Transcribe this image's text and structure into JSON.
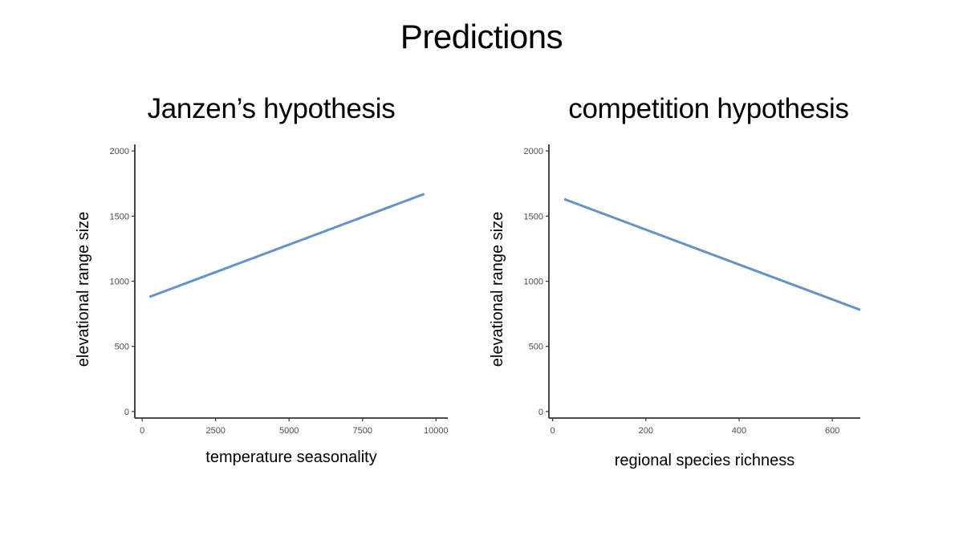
{
  "title": "Predictions",
  "chart_data": [
    {
      "type": "line",
      "title": "Janzen’s hypothesis",
      "xlabel": "temperature seasonality",
      "ylabel": "elevational range size",
      "xlim": [
        -250,
        10400
      ],
      "ylim": [
        -50,
        2050
      ],
      "xticks": [
        0,
        2500,
        5000,
        7500,
        10000
      ],
      "yticks": [
        0,
        500,
        1000,
        1500,
        2000
      ],
      "xtick_labels": [
        "0",
        "2500",
        "5000",
        "7500",
        "10000"
      ],
      "ytick_labels": [
        "0",
        "500",
        "1000",
        "1500",
        "2000"
      ],
      "grid": false,
      "series": [
        {
          "x": [
            250,
            9600
          ],
          "values": [
            880,
            1670
          ],
          "color": "#6394c6"
        }
      ]
    },
    {
      "type": "line",
      "title": "competition hypothesis",
      "xlabel": "regional species richness",
      "ylabel": "elevational range size",
      "xlim": [
        -8,
        660
      ],
      "ylim": [
        -50,
        2050
      ],
      "xticks": [
        0,
        200,
        400,
        600
      ],
      "yticks": [
        0,
        500,
        1000,
        1500,
        2000
      ],
      "xtick_labels": [
        "0",
        "200",
        "400",
        "600"
      ],
      "ytick_labels": [
        "0",
        "500",
        "1000",
        "1500",
        "2000"
      ],
      "grid": false,
      "series": [
        {
          "x": [
            25,
            660
          ],
          "values": [
            1630,
            780
          ],
          "color": "#6394c6"
        }
      ]
    }
  ]
}
